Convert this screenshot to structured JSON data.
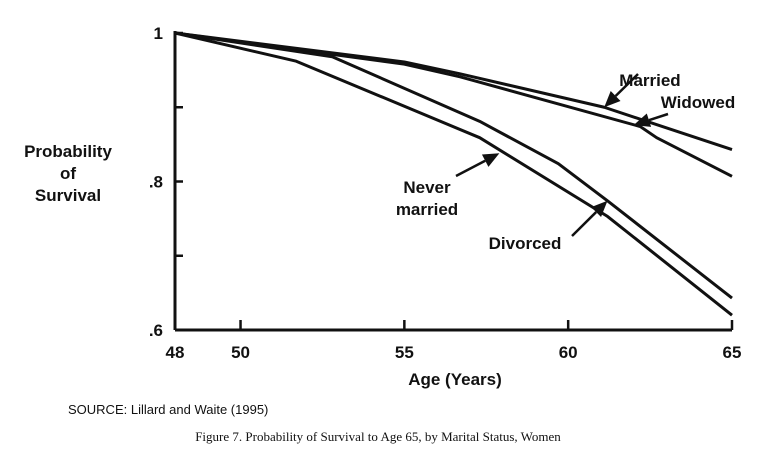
{
  "chart_data": {
    "type": "line",
    "title": "",
    "xlabel": "Age (Years)",
    "ylabel": [
      "Probability",
      "of",
      "Survival"
    ],
    "xlim": [
      48,
      65
    ],
    "ylim": [
      0.6,
      1.0
    ],
    "x_ticks": [
      48,
      50,
      55,
      60,
      65
    ],
    "x_tick_labels": [
      "48",
      "50",
      "55",
      "60",
      "65"
    ],
    "y_ticks": [
      0.6,
      0.7,
      0.8,
      0.9,
      1.0
    ],
    "y_tick_labels": [
      ".6",
      "",
      ".8",
      "",
      "1"
    ],
    "grid": false,
    "legend": "none (inline arrow labels)",
    "line_color": "#111111",
    "series": [
      {
        "name": "Married",
        "x": [
          48,
          55,
          56.7,
          61.1,
          65
        ],
        "y": [
          1.0,
          0.961,
          0.945,
          0.9,
          0.843
        ]
      },
      {
        "name": "Widowed",
        "x": [
          48,
          55,
          56.7,
          62.2,
          62.7,
          65
        ],
        "y": [
          1.0,
          0.958,
          0.941,
          0.874,
          0.859,
          0.807
        ]
      },
      {
        "name": "Divorced",
        "x": [
          48,
          52.8,
          57.3,
          59.7,
          61.2,
          65
        ],
        "y": [
          1.0,
          0.968,
          0.881,
          0.824,
          0.774,
          0.643
        ]
      },
      {
        "name": "Never married",
        "x": [
          48,
          51.7,
          57.3,
          61.2,
          65
        ],
        "y": [
          1.0,
          0.962,
          0.859,
          0.753,
          0.62
        ]
      }
    ],
    "annotations": [
      {
        "text": [
          "Married"
        ],
        "arrow_to": [
          61.1,
          0.9
        ]
      },
      {
        "text": [
          "Widowed"
        ],
        "arrow_to": [
          62.0,
          0.876
        ]
      },
      {
        "text": [
          "Never",
          "married"
        ],
        "arrow_to": [
          57.9,
          0.838
        ]
      },
      {
        "text": [
          "Divorced"
        ],
        "arrow_to": [
          61.2,
          0.774
        ]
      }
    ]
  },
  "source": "SOURCE:  Lillard and Waite (1995)",
  "caption": "Figure 7. Probability of Survival to Age 65, by Marital Status, Women"
}
